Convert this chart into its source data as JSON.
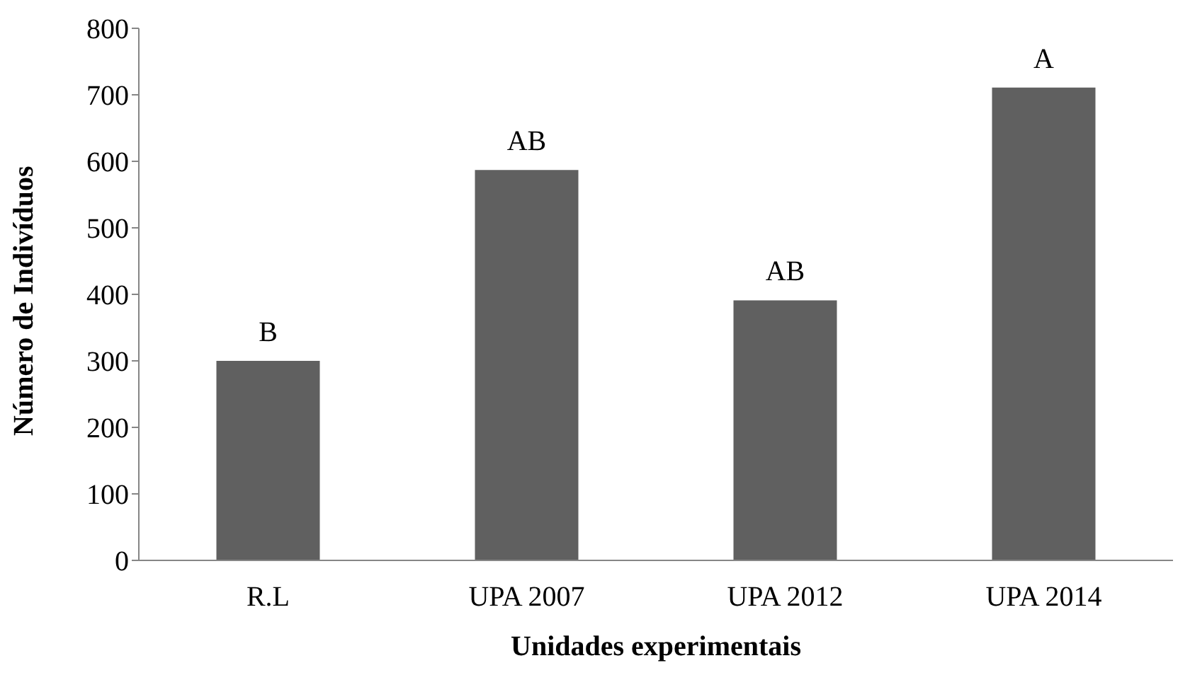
{
  "chart_data": {
    "type": "bar",
    "xlabel": "Unidades experimentais",
    "ylabel": "Número de Indivíduos",
    "categories": [
      "R.L",
      "UPA 2007",
      "UPA 2012",
      "UPA 2014"
    ],
    "values": [
      300,
      587,
      391,
      711
    ],
    "color": "#606060",
    "ylim": [
      0,
      800
    ],
    "yticks": [
      0,
      100,
      200,
      300,
      400,
      500,
      600,
      700,
      800
    ],
    "grid": false,
    "legend": false,
    "annotations": [
      {
        "text": "B",
        "x": "R.L",
        "y": 300
      },
      {
        "text": "AB",
        "x": "UPA 2007",
        "y": 587
      },
      {
        "text": "AB",
        "x": "UPA 2012",
        "y": 391
      },
      {
        "text": "A",
        "x": "UPA 2014",
        "y": 711
      }
    ]
  }
}
